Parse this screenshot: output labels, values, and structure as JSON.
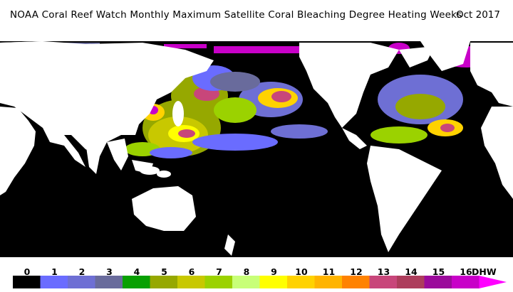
{
  "title": "NOAA Coral Reef Watch Monthly Maximum Satellite Coral Bleaching Degree Heating Weeks",
  "date": "Oct 2017",
  "legend": {
    "unit": "DHW",
    "ticks": [
      "0",
      "1",
      "2",
      "3",
      "4",
      "5",
      "6",
      "7",
      "8",
      "9",
      "10",
      "11",
      "12",
      "13",
      "14",
      "15",
      "16"
    ],
    "colors": [
      "#000000",
      "#6a6cff",
      "#6e6fd4",
      "#696b9c",
      "#08a002",
      "#96a800",
      "#c8c800",
      "#9bd200",
      "#c8ff78",
      "#ffff00",
      "#ffd200",
      "#ffb400",
      "#ff8200",
      "#c8467a",
      "#ad3d5c",
      "#9b0a9b",
      "#c800c8",
      "#ff00ff"
    ]
  },
  "colors": {
    "ocean": "#000000",
    "land": "#ffffff",
    "no_data_ice": "#ffffff"
  }
}
